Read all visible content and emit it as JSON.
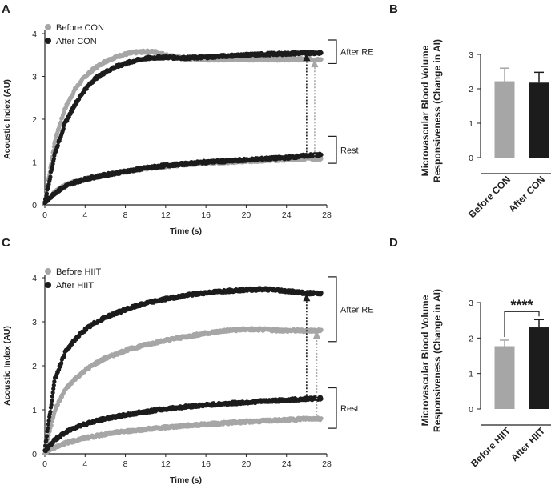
{
  "colors": {
    "before": "#a6a6a6",
    "after": "#1c1c1c",
    "axis": "#222222"
  },
  "chart_data": [
    {
      "panel": "A",
      "type": "scatter",
      "xlabel": "Time (s)",
      "ylabel": "Acoustic Index (AU)",
      "xlim": [
        0,
        28
      ],
      "ylim": [
        0,
        4
      ],
      "xticks": [
        "0",
        "4",
        "8",
        "12",
        "16",
        "20",
        "24",
        "28"
      ],
      "yticks": [
        "0",
        "1",
        "2",
        "3",
        "4"
      ],
      "legend": "top-left",
      "series": [
        {
          "name": "Before CON",
          "condition": "RE",
          "color": "before",
          "x": [
            0,
            1,
            2,
            3,
            4,
            5,
            6,
            7,
            8,
            9,
            10,
            11,
            12,
            13,
            14,
            16,
            18,
            20,
            22,
            24,
            26,
            27.5
          ],
          "y": [
            0.05,
            1.5,
            2.25,
            2.7,
            3.0,
            3.2,
            3.35,
            3.45,
            3.52,
            3.56,
            3.58,
            3.57,
            3.5,
            3.45,
            3.42,
            3.4,
            3.4,
            3.4,
            3.4,
            3.4,
            3.4,
            3.4
          ]
        },
        {
          "name": "After CON",
          "condition": "RE",
          "color": "after",
          "x": [
            0,
            1,
            2,
            3,
            4,
            5,
            6,
            7,
            8,
            9,
            10,
            11,
            12,
            13,
            14,
            16,
            18,
            20,
            22,
            24,
            26,
            27.5
          ],
          "y": [
            0.05,
            1.2,
            1.9,
            2.35,
            2.7,
            2.95,
            3.1,
            3.22,
            3.3,
            3.37,
            3.42,
            3.44,
            3.45,
            3.44,
            3.43,
            3.45,
            3.48,
            3.5,
            3.52,
            3.53,
            3.55,
            3.55
          ]
        },
        {
          "name": "Before CON",
          "condition": "Rest",
          "color": "before",
          "x": [
            0,
            1,
            2,
            3,
            4,
            5,
            6,
            8,
            10,
            12,
            14,
            16,
            18,
            20,
            22,
            24,
            26,
            27.5
          ],
          "y": [
            0.05,
            0.3,
            0.45,
            0.55,
            0.6,
            0.65,
            0.7,
            0.78,
            0.85,
            0.9,
            0.95,
            0.98,
            1.0,
            1.02,
            1.04,
            1.06,
            1.08,
            1.08
          ]
        },
        {
          "name": "After CON",
          "condition": "Rest",
          "color": "after",
          "x": [
            0,
            1,
            2,
            3,
            4,
            5,
            6,
            8,
            10,
            12,
            14,
            16,
            18,
            20,
            22,
            24,
            26,
            27.5
          ],
          "y": [
            0.05,
            0.28,
            0.43,
            0.53,
            0.6,
            0.65,
            0.7,
            0.78,
            0.86,
            0.92,
            0.96,
            1.0,
            1.02,
            1.05,
            1.08,
            1.1,
            1.15,
            1.17
          ]
        }
      ],
      "arrows": [
        {
          "x": 26,
          "from": 1.15,
          "to": 3.55,
          "color": "after"
        },
        {
          "x": 26.8,
          "from": 1.08,
          "to": 3.4,
          "color": "before"
        }
      ],
      "brackets": [
        {
          "label": "After RE",
          "from": 3.3,
          "to": 3.85
        },
        {
          "label": "Rest",
          "from": 0.97,
          "to": 1.6
        }
      ]
    },
    {
      "panel": "B",
      "type": "bar",
      "ylabel_lines": [
        "Microvascular Blood Volume",
        "Responsiveness (Change in AI)"
      ],
      "ylim": [
        0,
        3
      ],
      "yticks": [
        "0",
        "1",
        "2",
        "3"
      ],
      "categories": [
        "Before CON",
        "After CON"
      ],
      "values": [
        2.22,
        2.18
      ],
      "errors": [
        0.38,
        0.3
      ],
      "bar_colors": [
        "before",
        "after"
      ]
    },
    {
      "panel": "C",
      "type": "scatter",
      "xlabel": "Time (s)",
      "ylabel": "Acoustic Index (AU)",
      "xlim": [
        0,
        28
      ],
      "ylim": [
        0,
        4
      ],
      "xticks": [
        "0",
        "4",
        "8",
        "12",
        "16",
        "20",
        "24",
        "28"
      ],
      "yticks": [
        "0",
        "1",
        "2",
        "3",
        "4"
      ],
      "legend": "top-left",
      "series": [
        {
          "name": "Before HIIT",
          "condition": "RE",
          "color": "before",
          "x": [
            0,
            1,
            2,
            3,
            4,
            5,
            6,
            8,
            10,
            12,
            14,
            16,
            18,
            20,
            22,
            24,
            26,
            27.5
          ],
          "y": [
            0.05,
            1.0,
            1.45,
            1.7,
            1.9,
            2.05,
            2.17,
            2.35,
            2.48,
            2.58,
            2.66,
            2.74,
            2.8,
            2.83,
            2.82,
            2.8,
            2.8,
            2.8
          ]
        },
        {
          "name": "After HIIT",
          "condition": "RE",
          "color": "after",
          "x": [
            0,
            1,
            2,
            3,
            4,
            5,
            6,
            8,
            10,
            12,
            14,
            16,
            18,
            20,
            22,
            24,
            26,
            27.5
          ],
          "y": [
            0.1,
            1.7,
            2.3,
            2.6,
            2.82,
            2.98,
            3.1,
            3.28,
            3.42,
            3.52,
            3.6,
            3.66,
            3.7,
            3.73,
            3.74,
            3.7,
            3.65,
            3.65
          ]
        },
        {
          "name": "Before HIIT",
          "condition": "Rest",
          "color": "before",
          "x": [
            0,
            1,
            2,
            3,
            4,
            5,
            6,
            8,
            10,
            12,
            14,
            16,
            18,
            20,
            22,
            24,
            26,
            27.5
          ],
          "y": [
            0.02,
            0.15,
            0.24,
            0.3,
            0.36,
            0.4,
            0.45,
            0.51,
            0.56,
            0.6,
            0.64,
            0.67,
            0.7,
            0.73,
            0.75,
            0.77,
            0.8,
            0.8
          ]
        },
        {
          "name": "After HIIT",
          "condition": "Rest",
          "color": "after",
          "x": [
            0,
            1,
            2,
            3,
            4,
            5,
            6,
            8,
            10,
            12,
            14,
            16,
            18,
            20,
            22,
            24,
            26,
            27.5
          ],
          "y": [
            0.05,
            0.32,
            0.48,
            0.6,
            0.68,
            0.74,
            0.8,
            0.88,
            0.96,
            1.02,
            1.07,
            1.11,
            1.14,
            1.17,
            1.2,
            1.22,
            1.25,
            1.26
          ]
        }
      ],
      "arrows": [
        {
          "x": 26,
          "from": 1.25,
          "to": 3.65,
          "color": "after"
        },
        {
          "x": 27,
          "from": 0.8,
          "to": 2.8,
          "color": "before"
        }
      ],
      "brackets": [
        {
          "label": "After RE",
          "from": 2.55,
          "to": 4.02
        },
        {
          "label": "Rest",
          "from": 0.58,
          "to": 1.5
        }
      ]
    },
    {
      "panel": "D",
      "type": "bar",
      "ylabel_lines": [
        "Microvascular Blood Volume",
        "Responsiveness (Change in AI)"
      ],
      "ylim": [
        0,
        3
      ],
      "yticks": [
        "0",
        "1",
        "2",
        "3"
      ],
      "categories": [
        "Before HIIT",
        "After HIIT"
      ],
      "values": [
        1.77,
        2.3
      ],
      "errors": [
        0.17,
        0.22
      ],
      "bar_colors": [
        "before",
        "after"
      ],
      "significance": "****"
    }
  ]
}
